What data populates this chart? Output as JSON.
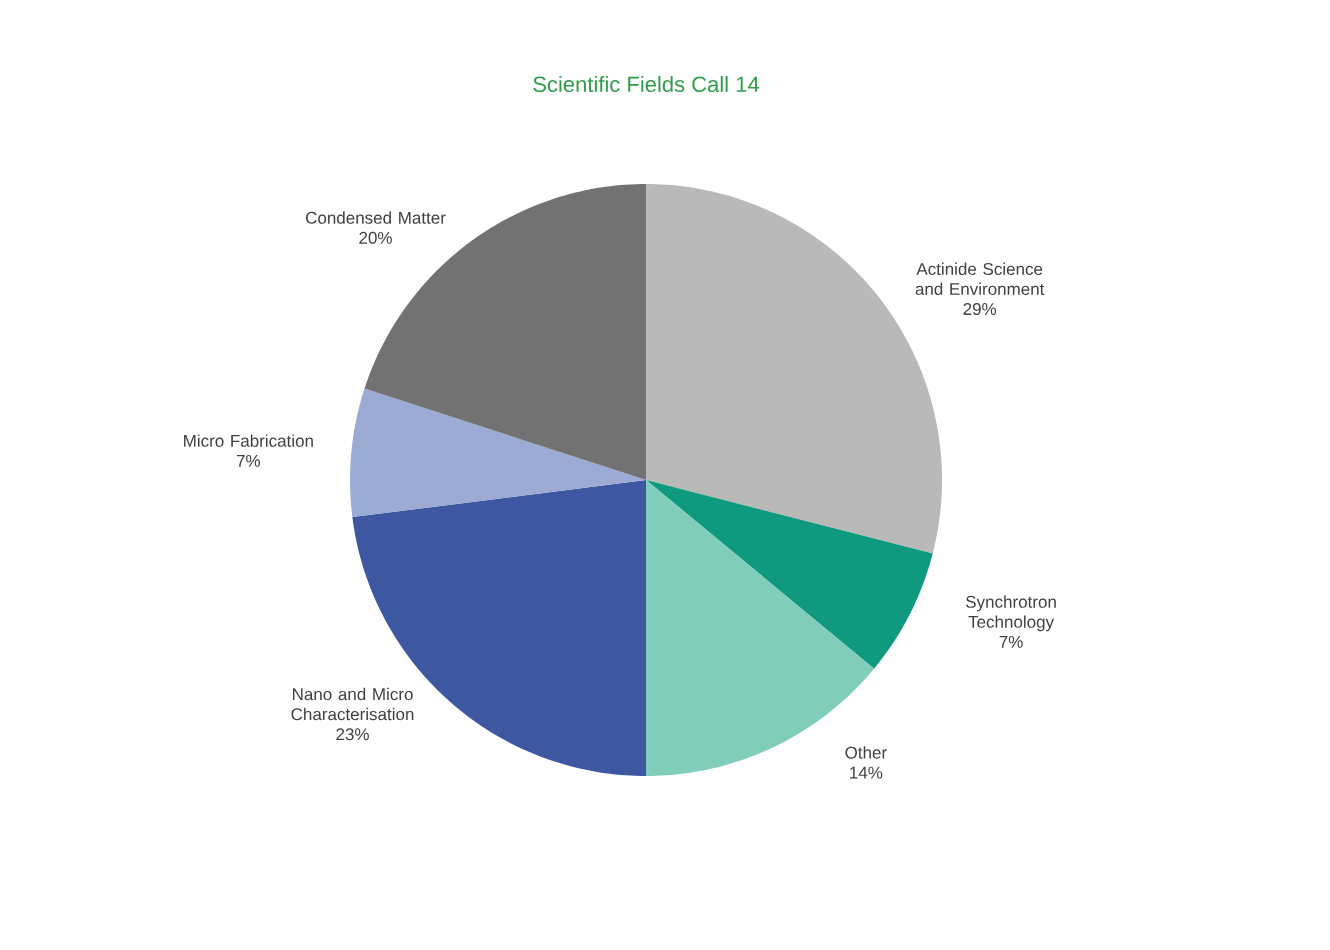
{
  "chart_data": {
    "type": "pie",
    "title": "Scientific Fields Call 14",
    "categories": [
      "Actinide Science and Environment",
      "Synchrotron Technology",
      "Other",
      "Nano and Micro Characterisation",
      "Micro Fabrication",
      "Condensed Matter"
    ],
    "values": [
      29,
      7,
      14,
      23,
      7,
      20
    ],
    "value_labels": [
      "29%",
      "7%",
      "14%",
      "23%",
      "7%",
      "20%"
    ],
    "colors": [
      "#b9b9b9",
      "#0f9a7f",
      "#80cdb9",
      "#3d58a1",
      "#9babd3",
      "#727272"
    ],
    "legend": false
  }
}
